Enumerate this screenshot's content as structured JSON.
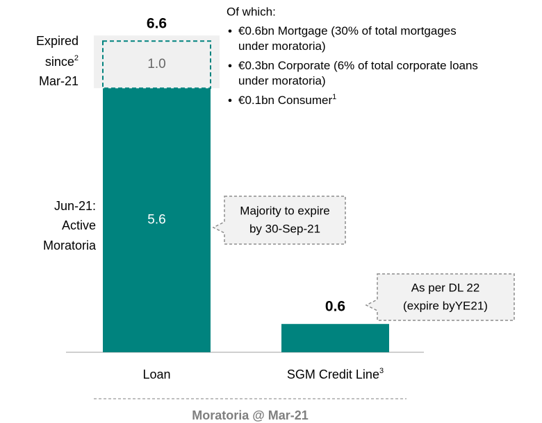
{
  "chart_data": {
    "type": "stacked_bar",
    "categories": [
      "Loan",
      "SGM Credit Line"
    ],
    "category_sups": [
      null,
      "3"
    ],
    "series": [
      {
        "name_lines": [
          "Jun-21:",
          "Active",
          "Moratoria"
        ],
        "color": "#00837e",
        "values": [
          5.6,
          0.6
        ],
        "value_labels": [
          "5.6",
          null
        ]
      },
      {
        "name_lines": [
          "Expired",
          "since",
          "Mar-21"
        ],
        "name_sup": "2",
        "color": "#f0f0f0",
        "outline": "#00837e",
        "values": [
          1.0,
          null
        ],
        "value_labels": [
          "1.0",
          null
        ]
      }
    ],
    "totals": [
      6.6,
      0.6
    ],
    "ylim": [
      0,
      7
    ],
    "xlabel": "Moratoria @ Mar-21",
    "notes": {
      "heading": "Of which:",
      "bullets": [
        {
          "lines": [
            "€0.6bn Mortgage (30% of total mortgages",
            "under moratoria)"
          ]
        },
        {
          "lines": [
            "€0.3bn Corporate (6% of total corporate loans",
            "under moratoria)"
          ]
        },
        {
          "lines": [
            "€0.1bn Consumer"
          ],
          "sup": "1"
        }
      ]
    },
    "callouts": [
      {
        "lines": [
          "Majority to expire",
          "by 30-Sep-21"
        ]
      },
      {
        "lines": [
          "As per DL 22",
          "(expire byYE21)"
        ]
      }
    ]
  }
}
